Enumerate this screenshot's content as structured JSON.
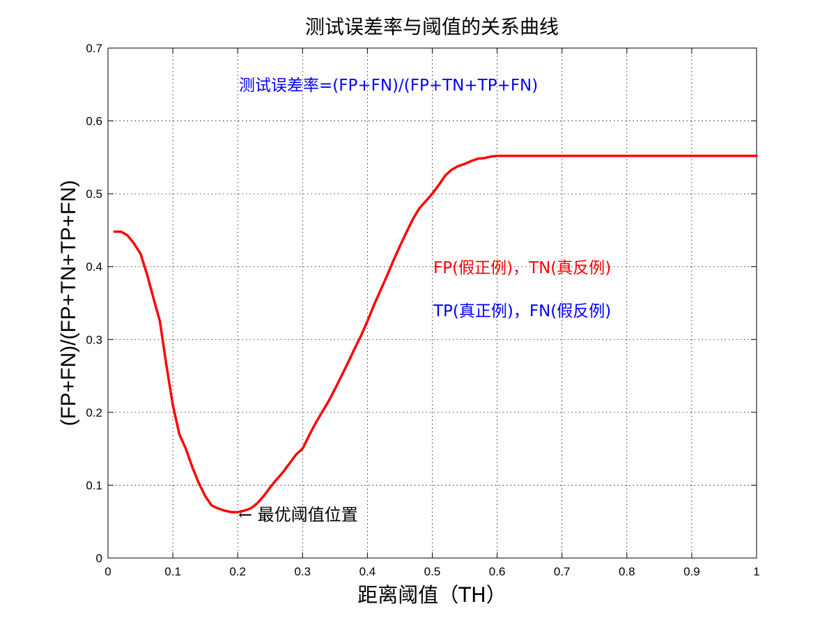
{
  "chart_data": {
    "type": "line",
    "title": "测试误差率与阈值的关系曲线",
    "xlabel": "距离阈值（TH）",
    "ylabel": "(FP+FN)/(FP+TN+TP+FN)",
    "xlim": [
      0,
      1
    ],
    "ylim": [
      0,
      0.7
    ],
    "xticks": [
      0,
      0.1,
      0.2,
      0.3,
      0.4,
      0.5,
      0.6,
      0.7,
      0.8,
      0.9,
      1
    ],
    "yticks": [
      0,
      0.1,
      0.2,
      0.3,
      0.4,
      0.5,
      0.6,
      0.7
    ],
    "xtick_labels": [
      "0",
      "0.1",
      "0.2",
      "0.3",
      "0.4",
      "0.5",
      "0.6",
      "0.7",
      "0.8",
      "0.9",
      "1"
    ],
    "ytick_labels": [
      "0",
      "0.1",
      "0.2",
      "0.3",
      "0.4",
      "0.5",
      "0.6",
      "0.7"
    ],
    "grid": true,
    "series": [
      {
        "color": "#ff0000",
        "x": [
          0.01,
          0.02,
          0.03,
          0.04,
          0.05,
          0.06,
          0.07,
          0.08,
          0.09,
          0.1,
          0.11,
          0.12,
          0.13,
          0.14,
          0.15,
          0.16,
          0.17,
          0.18,
          0.19,
          0.2,
          0.21,
          0.22,
          0.23,
          0.24,
          0.25,
          0.26,
          0.27,
          0.28,
          0.29,
          0.3,
          0.31,
          0.32,
          0.33,
          0.34,
          0.35,
          0.36,
          0.37,
          0.38,
          0.39,
          0.4,
          0.41,
          0.42,
          0.43,
          0.44,
          0.45,
          0.46,
          0.47,
          0.48,
          0.49,
          0.5,
          0.51,
          0.52,
          0.53,
          0.54,
          0.55,
          0.56,
          0.57,
          0.58,
          0.59,
          0.6,
          0.61,
          0.62,
          0.65,
          0.7,
          0.8,
          0.9,
          1.0
        ],
        "y": [
          0.448,
          0.448,
          0.443,
          0.432,
          0.418,
          0.39,
          0.357,
          0.325,
          0.265,
          0.21,
          0.17,
          0.15,
          0.125,
          0.103,
          0.085,
          0.072,
          0.068,
          0.065,
          0.063,
          0.063,
          0.065,
          0.068,
          0.075,
          0.085,
          0.097,
          0.108,
          0.118,
          0.13,
          0.142,
          0.15,
          0.168,
          0.185,
          0.2,
          0.215,
          0.232,
          0.25,
          0.268,
          0.287,
          0.305,
          0.325,
          0.347,
          0.367,
          0.387,
          0.408,
          0.428,
          0.447,
          0.465,
          0.48,
          0.49,
          0.5,
          0.512,
          0.525,
          0.533,
          0.538,
          0.541,
          0.545,
          0.548,
          0.549,
          0.551,
          0.552,
          0.552,
          0.552,
          0.552,
          0.552,
          0.552,
          0.552,
          0.552
        ]
      }
    ],
    "annotations": {
      "formula": "测试误差率=(FP+FN)/(FP+TN+TP+FN)",
      "formula_color": "#0000ff",
      "legend_red": "FP(假正例)，TN(真反例)",
      "legend_red_color": "#ff0000",
      "legend_blue": "TP(真正例)，FN(假反例)",
      "legend_blue_color": "#0000ff",
      "min_marker": "← 最优阈值位置",
      "min_x": 0.2,
      "min_y": 0.063
    }
  }
}
